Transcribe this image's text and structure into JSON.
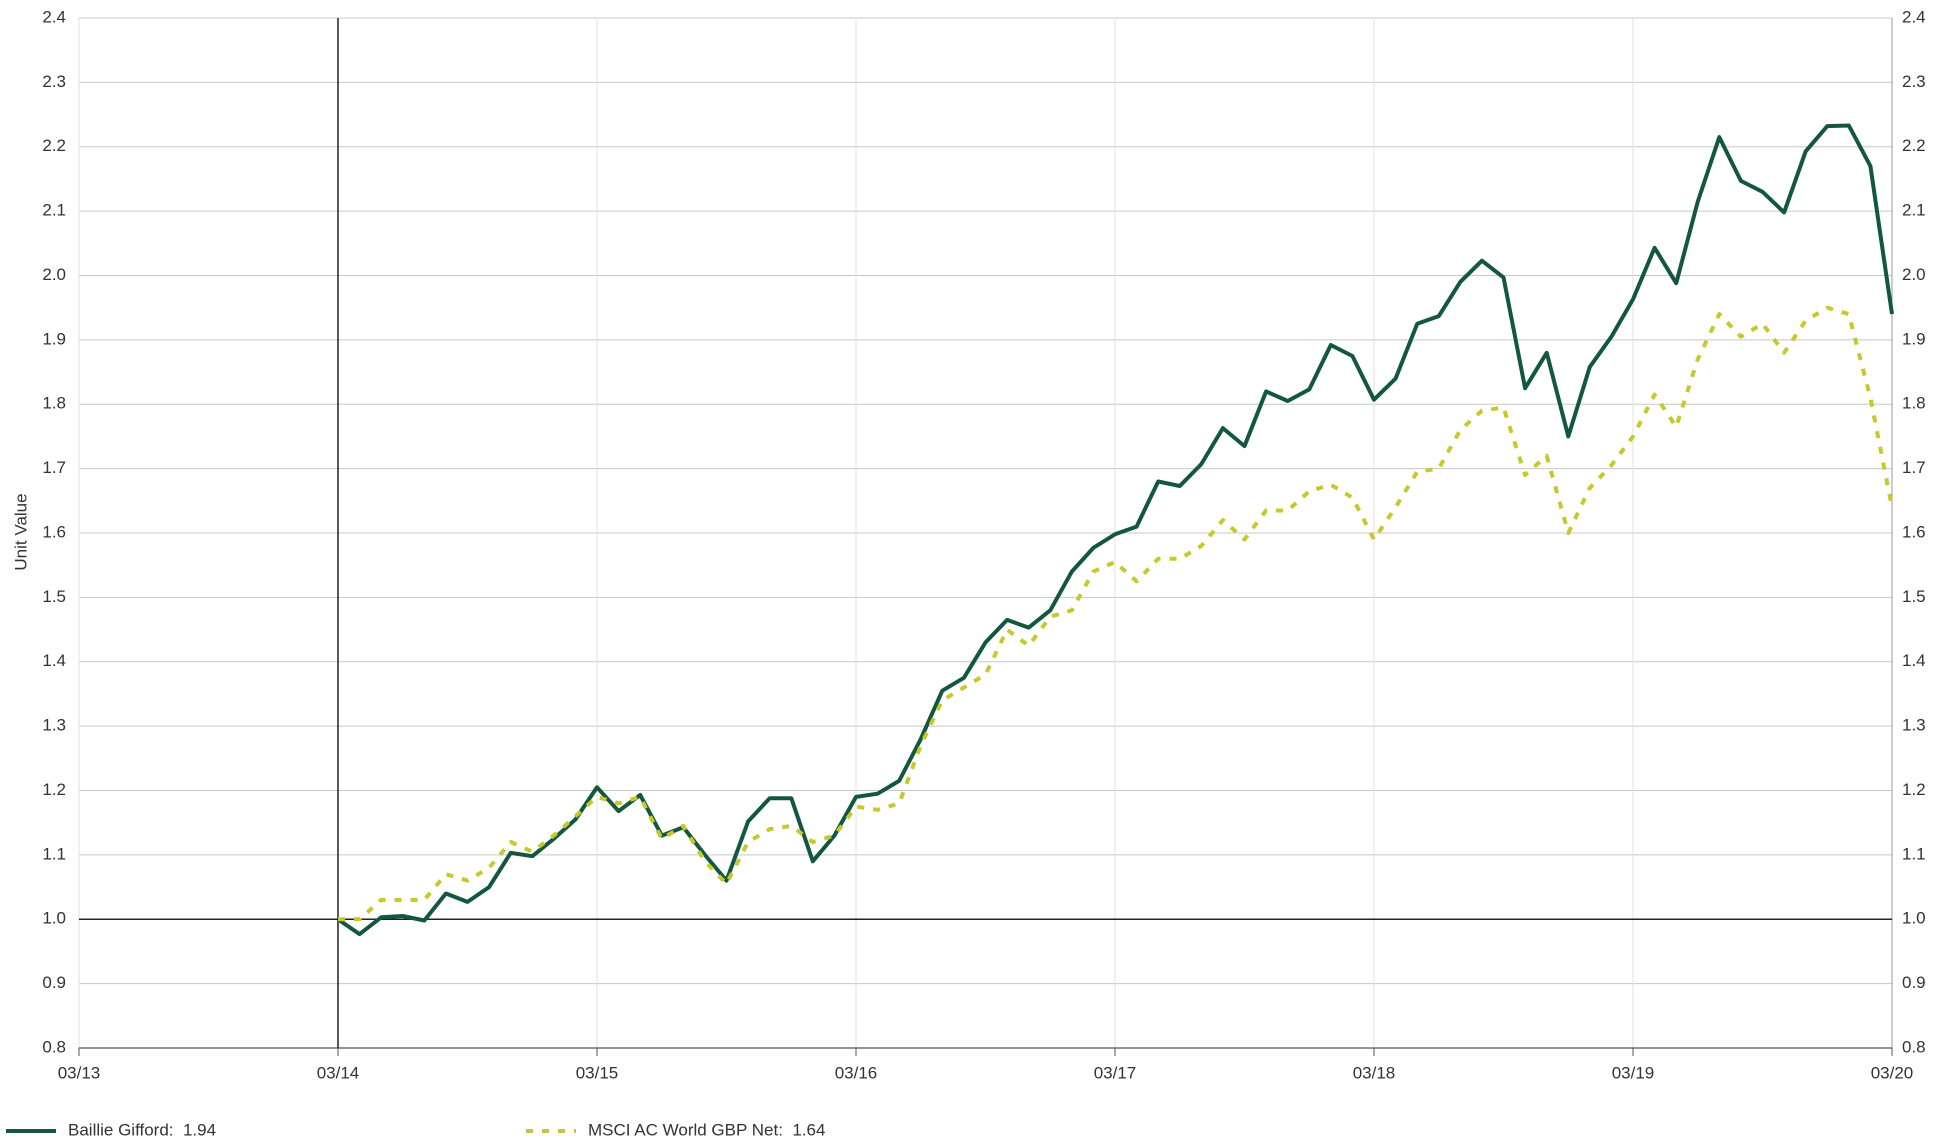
{
  "chart_data": {
    "type": "line",
    "y_axis_label": "Unit Value",
    "x": [
      "03/14",
      "04/14",
      "05/14",
      "06/14",
      "07/14",
      "08/14",
      "09/14",
      "10/14",
      "11/14",
      "12/14",
      "01/15",
      "02/15",
      "03/15",
      "04/15",
      "05/15",
      "06/15",
      "07/15",
      "08/15",
      "09/15",
      "10/15",
      "11/15",
      "12/15",
      "01/16",
      "02/16",
      "03/16",
      "04/16",
      "05/16",
      "06/16",
      "07/16",
      "08/16",
      "09/16",
      "10/16",
      "11/16",
      "12/16",
      "01/17",
      "02/17",
      "03/17",
      "04/17",
      "05/17",
      "06/17",
      "07/17",
      "08/17",
      "09/17",
      "10/17",
      "11/17",
      "12/17",
      "01/18",
      "02/18",
      "03/18",
      "04/18",
      "05/18",
      "06/18",
      "07/18",
      "08/18",
      "09/18",
      "10/18",
      "11/18",
      "12/18",
      "01/19",
      "02/19",
      "03/19",
      "04/19",
      "05/19",
      "06/19",
      "07/19",
      "08/19",
      "09/19",
      "10/19",
      "11/19",
      "12/19",
      "01/20",
      "02/20",
      "03/20"
    ],
    "series": [
      {
        "name": "Baillie Gifford",
        "legend_label": "Baillie Gifford:  1.94",
        "color": "#14573f",
        "dash": false,
        "values": [
          1.0,
          0.977,
          1.003,
          1.005,
          0.998,
          1.04,
          1.027,
          1.05,
          1.103,
          1.098,
          1.125,
          1.155,
          1.205,
          1.168,
          1.193,
          1.13,
          1.143,
          1.1,
          1.06,
          1.152,
          1.188,
          1.188,
          1.09,
          1.13,
          1.19,
          1.195,
          1.215,
          1.28,
          1.355,
          1.375,
          1.43,
          1.465,
          1.453,
          1.48,
          1.54,
          1.577,
          1.598,
          1.61,
          1.68,
          1.673,
          1.707,
          1.763,
          1.735,
          1.82,
          1.805,
          1.823,
          1.892,
          1.875,
          1.807,
          1.84,
          1.925,
          1.937,
          1.99,
          2.023,
          1.997,
          1.825,
          1.88,
          1.75,
          1.858,
          1.905,
          1.963,
          2.043,
          1.988,
          2.115,
          2.215,
          2.147,
          2.13,
          2.098,
          2.193,
          2.232,
          2.233,
          2.17,
          1.94
        ]
      },
      {
        "name": "MSCI AC World GBP Net",
        "legend_label": "MSCI AC World GBP Net:  1.64",
        "color": "#c5c92c",
        "dash": true,
        "values": [
          1.0,
          1.0,
          1.03,
          1.03,
          1.03,
          1.07,
          1.06,
          1.08,
          1.12,
          1.105,
          1.13,
          1.16,
          1.19,
          1.18,
          1.19,
          1.125,
          1.145,
          1.09,
          1.055,
          1.12,
          1.14,
          1.145,
          1.12,
          1.13,
          1.175,
          1.17,
          1.18,
          1.27,
          1.34,
          1.36,
          1.38,
          1.45,
          1.425,
          1.47,
          1.48,
          1.54,
          1.555,
          1.525,
          1.56,
          1.56,
          1.58,
          1.62,
          1.59,
          1.635,
          1.635,
          1.665,
          1.675,
          1.655,
          1.59,
          1.64,
          1.695,
          1.7,
          1.76,
          1.79,
          1.795,
          1.69,
          1.72,
          1.6,
          1.67,
          1.705,
          1.75,
          1.815,
          1.765,
          1.87,
          1.94,
          1.905,
          1.925,
          1.88,
          1.93,
          1.95,
          1.94,
          1.81,
          1.64
        ]
      }
    ],
    "xlim": [
      "03/13",
      "03/20"
    ],
    "xticks": [
      "03/13",
      "03/14",
      "03/15",
      "03/16",
      "03/17",
      "03/18",
      "03/19",
      "03/20"
    ],
    "ylim": [
      0.8,
      2.4
    ],
    "yticks": [
      {
        "value": 0.8,
        "label": "0.8"
      },
      {
        "value": 0.9,
        "label": "0.9"
      },
      {
        "value": 1.0,
        "label": "1.0"
      },
      {
        "value": 1.1,
        "label": "1.1"
      },
      {
        "value": 1.2,
        "label": "1.2"
      },
      {
        "value": 1.3,
        "label": "1.3"
      },
      {
        "value": 1.4,
        "label": "1.4"
      },
      {
        "value": 1.5,
        "label": "1.5"
      },
      {
        "value": 1.6,
        "label": "1.6"
      },
      {
        "value": 1.7,
        "label": "1.7"
      },
      {
        "value": 1.8,
        "label": "1.8"
      },
      {
        "value": 1.9,
        "label": "1.9"
      },
      {
        "value": 2.0,
        "label": "2.0"
      },
      {
        "value": 2.1,
        "label": "2.1"
      },
      {
        "value": 2.2,
        "label": "2.2"
      },
      {
        "value": 2.3,
        "label": "2.3"
      },
      {
        "value": 2.4,
        "label": "2.4"
      }
    ],
    "y2lim": [
      0.8,
      2.4
    ],
    "y2ticks": [
      {
        "value": 0.8,
        "label": "0.8"
      },
      {
        "value": 0.9,
        "label": "0.9"
      },
      {
        "value": 1.0,
        "label": "1.0"
      },
      {
        "value": 1.1,
        "label": "1.1"
      },
      {
        "value": 1.2,
        "label": "1.2"
      },
      {
        "value": 1.3,
        "label": "1.3"
      },
      {
        "value": 1.4,
        "label": "1.4"
      },
      {
        "value": 1.5,
        "label": "1.5"
      },
      {
        "value": 1.6,
        "label": "1.6"
      },
      {
        "value": 1.7,
        "label": "1.7"
      },
      {
        "value": 1.8,
        "label": "1.8"
      },
      {
        "value": 1.9,
        "label": "1.9"
      },
      {
        "value": 2.0,
        "label": "2.0"
      },
      {
        "value": 2.1,
        "label": "2.1"
      },
      {
        "value": 2.2,
        "label": "2.2"
      },
      {
        "value": 2.3,
        "label": "2.3"
      },
      {
        "value": 2.4,
        "label": "2.4"
      }
    ],
    "baseline": 1.0,
    "start_line": "03/14",
    "grid": true
  }
}
